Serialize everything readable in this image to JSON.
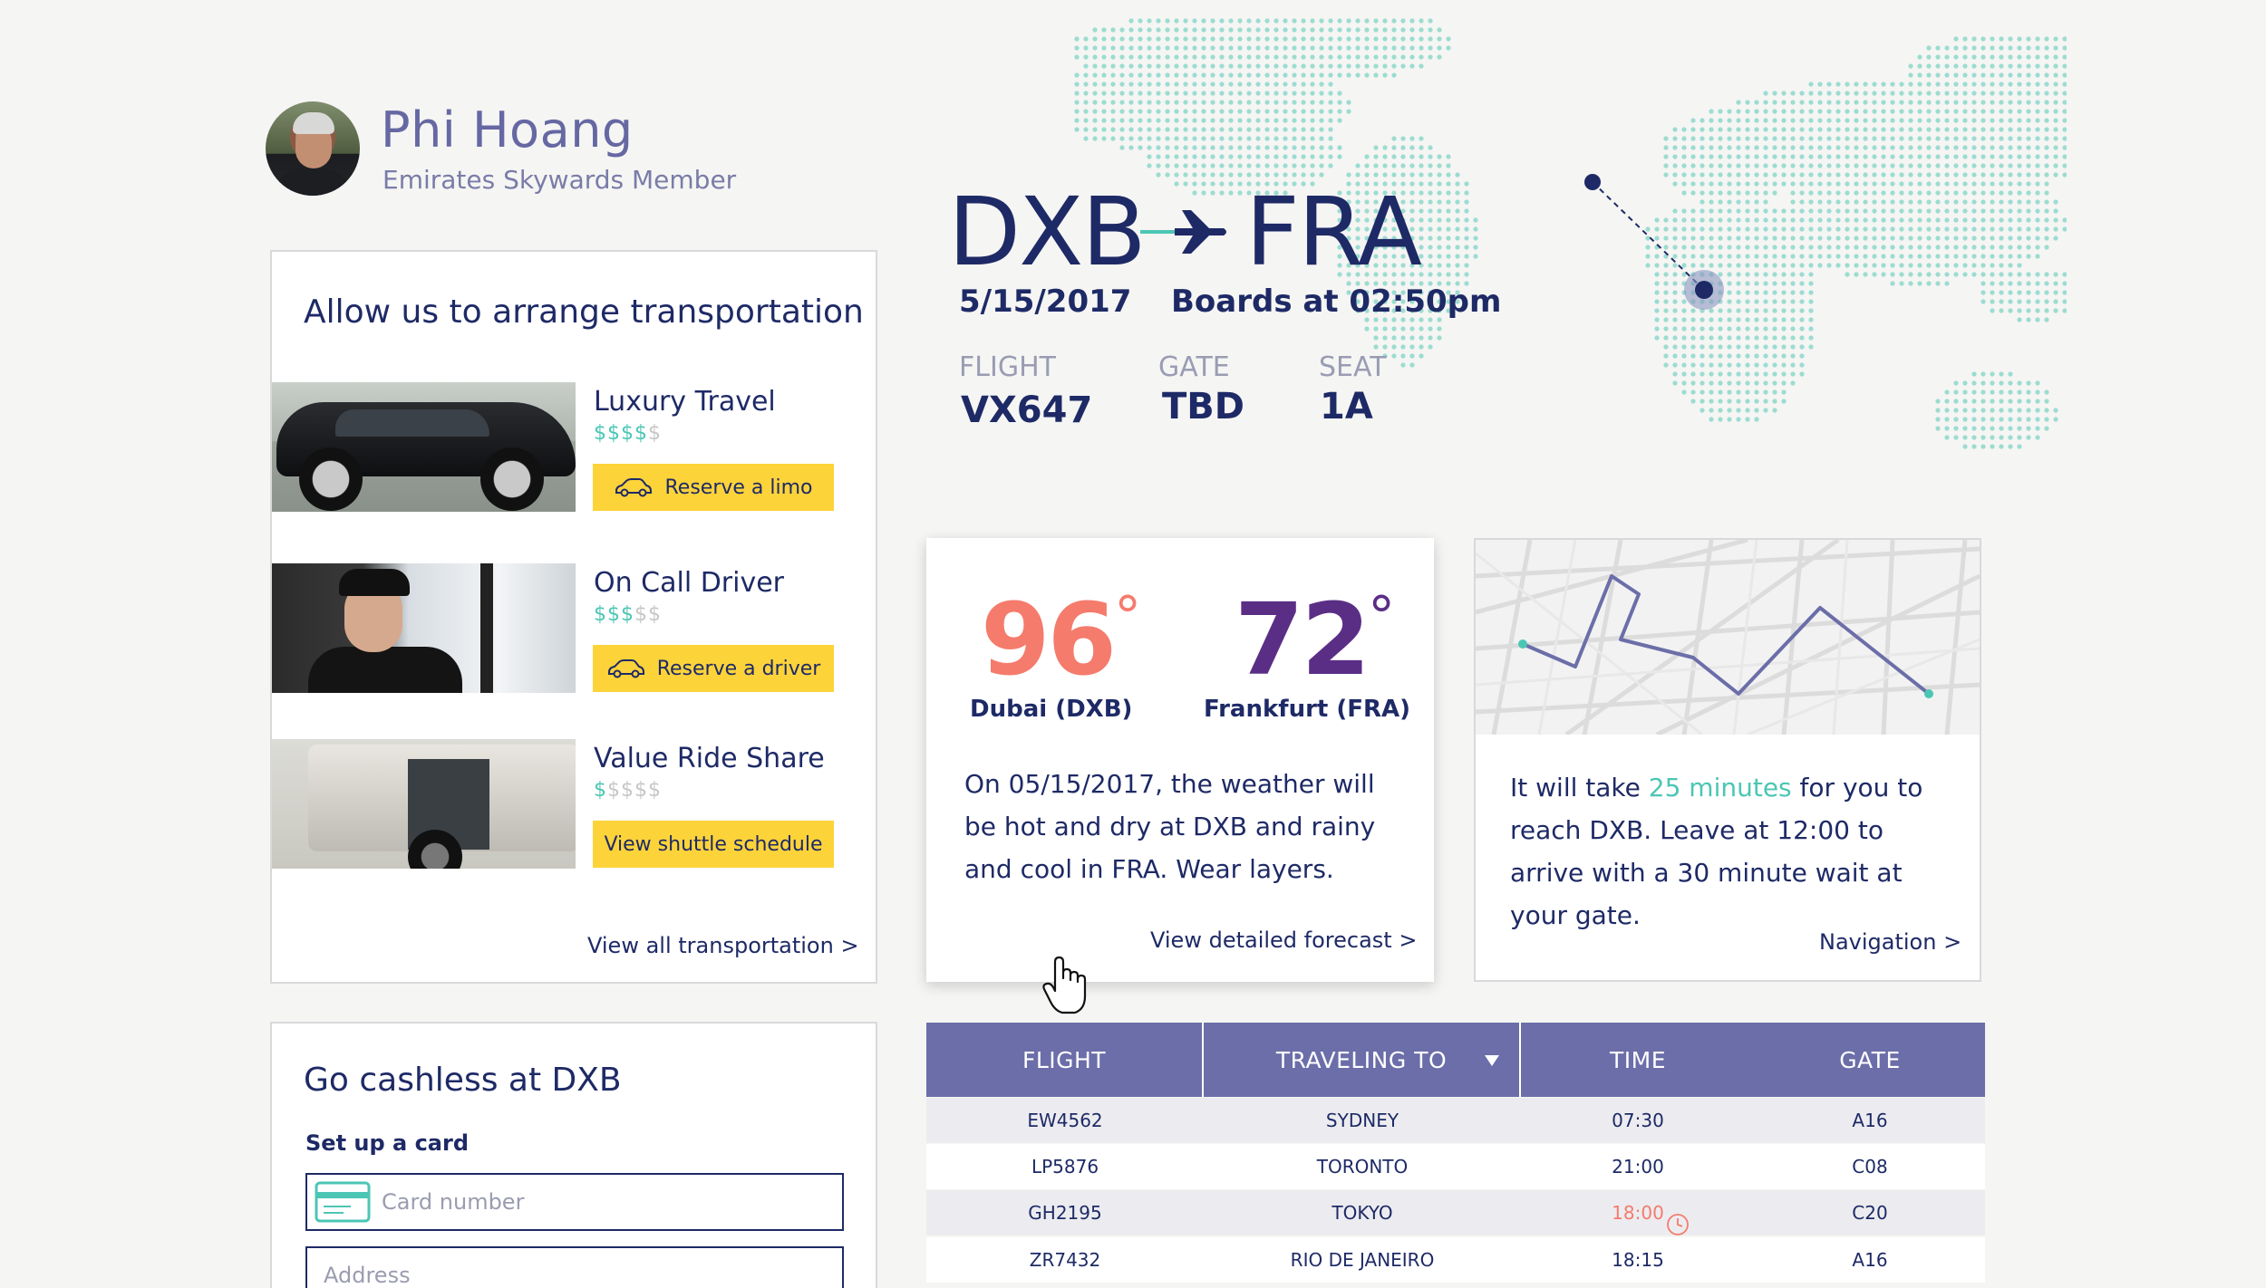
{
  "profile": {
    "name": "Phi Hoang",
    "membership": "Emirates Skywards Member"
  },
  "flight": {
    "origin": "DXB",
    "destination": "FRA",
    "date": "5/15/2017",
    "boards": "Boards at 02:50pm",
    "labels": {
      "flight": "FLIGHT",
      "gate": "GATE",
      "seat": "SEAT"
    },
    "flight_number": "VX647",
    "gate": "TBD",
    "seat": "1A"
  },
  "transportation": {
    "title": "Allow us to arrange transportation",
    "options": [
      {
        "name": "Luxury Travel",
        "price_on": "$$$$",
        "price_off": "$",
        "button": "Reserve a limo"
      },
      {
        "name": "On Call Driver",
        "price_on": "$$$",
        "price_off": "$$",
        "button": "Reserve a driver"
      },
      {
        "name": "Value Ride Share",
        "price_on": "$",
        "price_off": "$$$$",
        "button": "View shuttle schedule"
      }
    ],
    "view_all": "View all transportation >"
  },
  "weather": {
    "origin_temp": "96",
    "origin_city": "Dubai (DXB)",
    "dest_temp": "72",
    "dest_city": "Frankfurt (FRA)",
    "degree": "°",
    "text": "On 05/15/2017, the weather will be hot and dry at DXB and rainy and cool in FRA. Wear layers.",
    "link": "View detailed forecast >",
    "colors": {
      "hot": "#f57b6c",
      "cool": "#5b2e86"
    }
  },
  "navigation": {
    "text_before": "It will take ",
    "highlight": "25 minutes",
    "text_after": " for you to reach DXB. Leave at 12:00 to arrive with a 30 minute wait at your gate.",
    "link": "Navigation >"
  },
  "cashless": {
    "title": "Go cashless at DXB",
    "subtitle": "Set up a card",
    "card_placeholder": "Card number",
    "address_placeholder": "Address"
  },
  "departures": {
    "headers": [
      "FLIGHT",
      "TRAVELING TO",
      "TIME",
      "GATE"
    ],
    "rows": [
      {
        "flight": "EW4562",
        "to": "SYDNEY",
        "time": "07:30",
        "gate": "A16",
        "delayed": false
      },
      {
        "flight": "LP5876",
        "to": "TORONTO",
        "time": "21:00",
        "gate": "C08",
        "delayed": false
      },
      {
        "flight": "GH2195",
        "to": "TOKYO",
        "time": "18:00",
        "gate": "C20",
        "delayed": true
      },
      {
        "flight": "ZR7432",
        "to": "RIO DE JANEIRO",
        "time": "18:15",
        "gate": "A16",
        "delayed": false
      }
    ]
  },
  "colors": {
    "navy": "#1e2a66",
    "accent_teal": "#4cc6b4",
    "button_yellow": "#fdd33a",
    "table_header": "#6b6ea8",
    "delay_red": "#f57b6c"
  }
}
